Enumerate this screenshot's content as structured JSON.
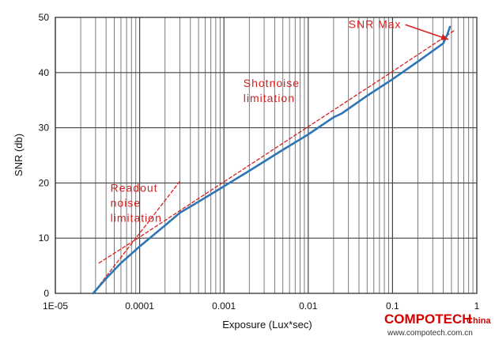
{
  "chart_data": {
    "type": "line",
    "xscale": "log",
    "xlim": [
      1e-05,
      1
    ],
    "ylim": [
      0,
      50
    ],
    "xlabel": "Exposure (Lux*sec)",
    "ylabel": "SNR (db)",
    "x_tick_labels": [
      {
        "value": 1e-05,
        "label": "1E-05"
      },
      {
        "value": 0.0001,
        "label": "0.0001"
      },
      {
        "value": 0.001,
        "label": "0.001"
      },
      {
        "value": 0.01,
        "label": "0.01"
      },
      {
        "value": 0.1,
        "label": "0.1"
      },
      {
        "value": 1,
        "label": "1"
      }
    ],
    "y_ticks": [
      0,
      10,
      20,
      30,
      40,
      50
    ],
    "grid": true,
    "series": [
      {
        "color": "#2e75b6",
        "style": "solid",
        "points": [
          [
            2.8e-05,
            0
          ],
          [
            4e-05,
            2.7
          ],
          [
            6e-05,
            5.5
          ],
          [
            0.0001,
            8.5
          ],
          [
            0.0002,
            12.3
          ],
          [
            0.0003,
            14.6
          ],
          [
            0.0005,
            16.6
          ],
          [
            0.001,
            19.4
          ],
          [
            0.002,
            22.2
          ],
          [
            0.005,
            26.0
          ],
          [
            0.01,
            28.8
          ],
          [
            0.02,
            31.9
          ],
          [
            0.025,
            32.6
          ],
          [
            0.05,
            35.8
          ],
          [
            0.1,
            38.8
          ],
          [
            0.2,
            42.0
          ],
          [
            0.4,
            45.3
          ],
          [
            0.45,
            47.0
          ],
          [
            0.48,
            48.3
          ]
        ]
      },
      {
        "color": "#d62020",
        "style": "dashed",
        "points": [
          [
            3.3e-05,
            5.5
          ],
          [
            0.0001,
            10.2
          ],
          [
            0.001,
            20.2
          ],
          [
            0.01,
            30.2
          ],
          [
            0.1,
            40.2
          ],
          [
            0.55,
            47.7
          ]
        ]
      },
      {
        "color": "#d62020",
        "style": "dashed",
        "points": [
          [
            2.8e-05,
            0
          ],
          [
            0.0003,
            20.3
          ]
        ]
      }
    ],
    "annotations": [
      {
        "lines": [
          "SNR Max"
        ],
        "x": 0.03,
        "y": 48.1,
        "arrow_to": [
          0.46,
          46.0
        ]
      },
      {
        "lines": [
          "Shotnoise",
          "limitation"
        ],
        "x": 0.0017,
        "y": 37.4
      },
      {
        "lines": [
          "Readout",
          "noise",
          "limitation"
        ],
        "x": 4.5e-05,
        "y": 18.4
      }
    ]
  },
  "watermark": {
    "brand": "COMPOTECH",
    "suffix": "China",
    "url": "www.compotech.com.cn"
  }
}
